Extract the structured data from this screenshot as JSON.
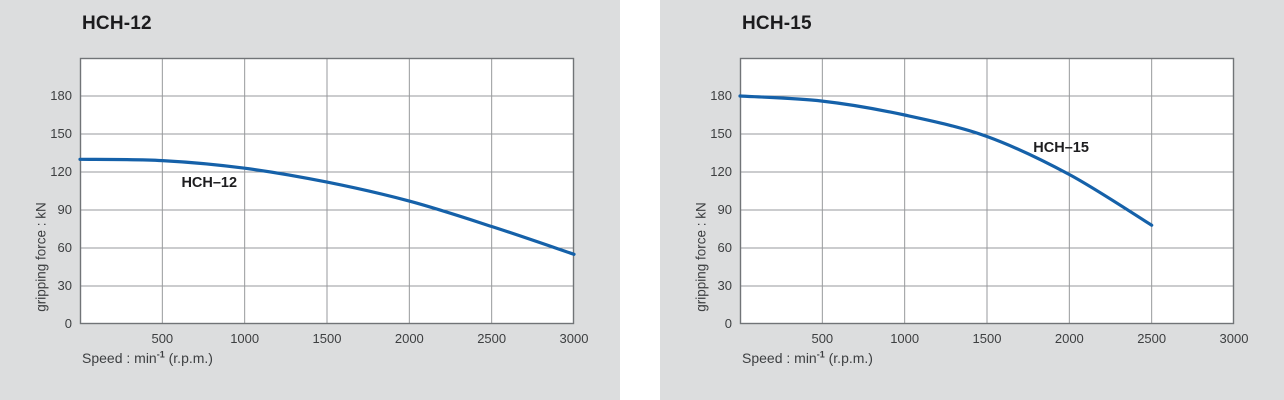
{
  "colors": {
    "card_background": "#dcddde",
    "plot_background": "#ffffff",
    "grid_line": "#97999c",
    "plot_border": "#717477",
    "curve": "#1561a9",
    "title_text": "#1c1c1e",
    "tick_text": "#3d3f41"
  },
  "chart_data": [
    {
      "type": "line",
      "title": "HCH-12",
      "series_name": "HCH-12 gripping force",
      "curve_label": "HCH–12",
      "curve_label_at": {
        "x": 785,
        "y": 111
      },
      "ylabel": "gripping force : kN",
      "xlabel": "Speed : min⁻¹ (r.p.m.)",
      "xlabel_main": "Speed : min",
      "xlabel_sup": "-1",
      "xlabel_tail": " (r.p.m.)",
      "x": [
        0,
        500,
        1000,
        1500,
        2000,
        2500,
        3000
      ],
      "y": [
        130,
        129,
        123,
        112,
        97,
        77,
        55
      ],
      "x_ticks": [
        500,
        1000,
        1500,
        2000,
        2500,
        3000
      ],
      "y_ticks": [
        0,
        30,
        60,
        90,
        120,
        150,
        180
      ],
      "xlim": [
        0,
        3000
      ],
      "ylim": [
        0,
        210
      ],
      "x_grid_step": 500,
      "y_grid_step": 30,
      "grid": true,
      "legend_position": "none"
    },
    {
      "type": "line",
      "title": "HCH-15",
      "series_name": "HCH-15 gripping force",
      "curve_label": "HCH–15",
      "curve_label_at": {
        "x": 1950,
        "y": 139
      },
      "ylabel": "gripping force : kN",
      "xlabel": "Speed : min⁻¹ (r.p.m.)",
      "xlabel_main": "Speed : min",
      "xlabel_sup": "-1",
      "xlabel_tail": " (r.p.m.)",
      "x": [
        0,
        500,
        1000,
        1500,
        2000,
        2500
      ],
      "y": [
        180,
        176,
        165,
        148,
        118,
        78
      ],
      "x_ticks": [
        500,
        1000,
        1500,
        2000,
        2500,
        3000
      ],
      "y_ticks": [
        0,
        30,
        60,
        90,
        120,
        150,
        180
      ],
      "xlim": [
        0,
        3000
      ],
      "ylim": [
        0,
        210
      ],
      "x_grid_step": 500,
      "y_grid_step": 30,
      "grid": true,
      "legend_position": "none"
    }
  ]
}
